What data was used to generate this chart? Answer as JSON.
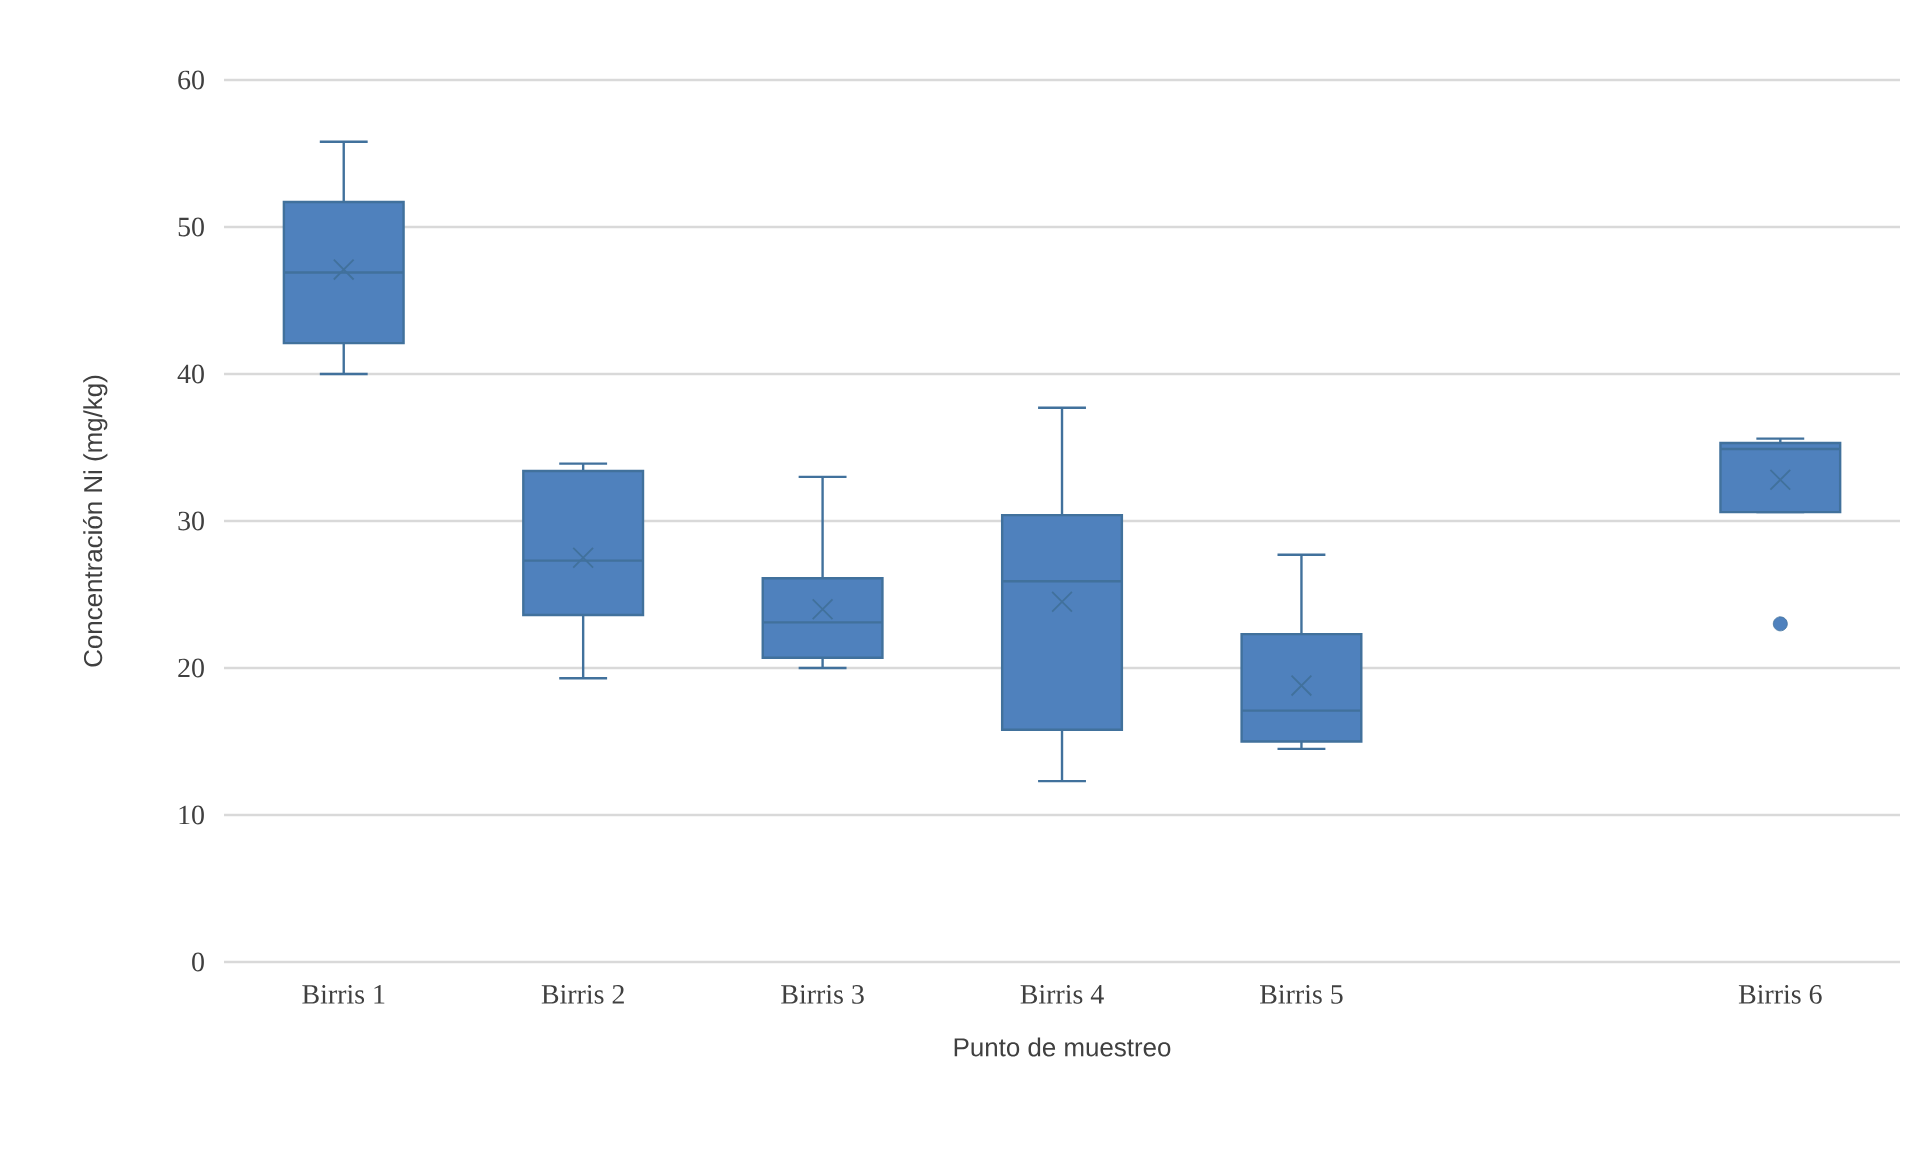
{
  "chart_data": {
    "type": "box",
    "xlabel": "Punto de muestreo",
    "ylabel": "Concentración Ni (mg/kg)",
    "categories": [
      "Birris 1",
      "Birris 2",
      "Birris 3",
      "Birris 4",
      "Birris 5",
      null,
      "Birris 6"
    ],
    "color": "#4f81bd",
    "boxes": [
      {
        "low": 40,
        "q1": 42.1,
        "median": 46.9,
        "q3": 51.7,
        "high": 55.8,
        "mean": 47.1
      },
      {
        "low": 19.3,
        "q1": 23.6,
        "median": 27.3,
        "q3": 33.4,
        "high": 33.9,
        "mean": 27.5
      },
      {
        "low": 20,
        "q1": 20.7,
        "median": 23.1,
        "q3": 26.1,
        "high": 33,
        "mean": 24
      },
      {
        "low": 12.3,
        "q1": 15.8,
        "median": 25.9,
        "q3": 30.4,
        "high": 37.7,
        "mean": 24.5
      },
      {
        "low": 14.5,
        "q1": 15,
        "median": 17.1,
        "q3": 22.3,
        "high": 27.7,
        "mean": 18.8
      },
      null,
      {
        "low": 30.6,
        "q1": 30.6,
        "median": 34.9,
        "q3": 35.3,
        "high": 35.6,
        "mean": 32.8,
        "outliers": [
          23
        ]
      }
    ],
    "ylim": [
      0,
      60
    ],
    "yticks": [
      0,
      10,
      20,
      30,
      40,
      50,
      60
    ],
    "grid": "y"
  }
}
